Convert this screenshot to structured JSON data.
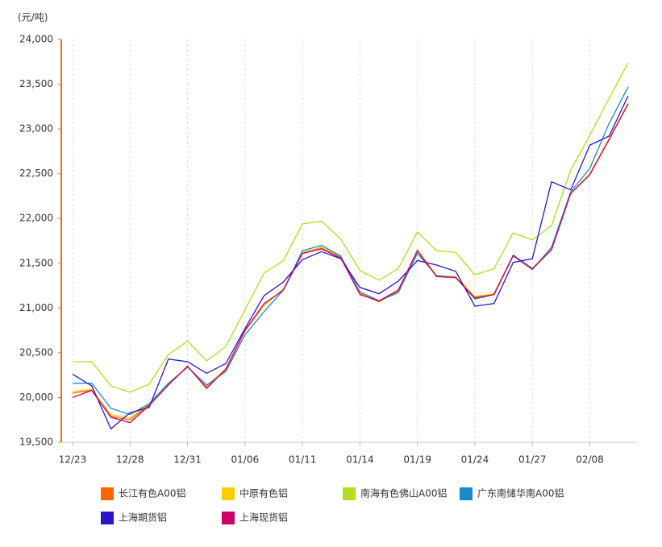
{
  "chart_data": {
    "type": "line",
    "y_unit": "(元/吨)",
    "categories": [
      "12/23",
      null,
      null,
      "12/28",
      null,
      null,
      "12/31",
      null,
      null,
      "01/06",
      null,
      null,
      "01/11",
      null,
      null,
      "01/14",
      null,
      null,
      "01/19",
      null,
      null,
      "01/24",
      null,
      null,
      "01/27",
      null,
      null,
      "02/08",
      null,
      null
    ],
    "ylim": [
      19500,
      24000
    ],
    "yticks": [
      {
        "value": 19500,
        "label": "19,500"
      },
      {
        "value": 20000,
        "label": "20,000"
      },
      {
        "value": 20500,
        "label": "20,500"
      },
      {
        "value": 21000,
        "label": "21,000"
      },
      {
        "value": 21500,
        "label": "21,500"
      },
      {
        "value": 22000,
        "label": "22,000"
      },
      {
        "value": 22500,
        "label": "22,500"
      },
      {
        "value": 23000,
        "label": "23,000"
      },
      {
        "value": 23500,
        "label": "23,500"
      },
      {
        "value": 24000,
        "label": "24,000"
      }
    ],
    "grid": true,
    "series": [
      {
        "name": "长江有色A00铝",
        "color": "#ff6600",
        "values": [
          20050,
          20080,
          19790,
          19750,
          19920,
          20140,
          20350,
          20120,
          20310,
          20740,
          21030,
          21210,
          21620,
          21670,
          21570,
          21160,
          21070,
          21190,
          21650,
          21360,
          21350,
          21120,
          21160,
          21590,
          21430,
          21660,
          22280,
          22500,
          22890,
          23290
        ]
      },
      {
        "name": "中原有色铝",
        "color": "#ffcc00",
        "values": [
          20070,
          20090,
          19810,
          19770,
          19930,
          20150,
          20350,
          20130,
          20320,
          20740,
          21030,
          21210,
          21620,
          21680,
          21570,
          21170,
          21080,
          21200,
          21650,
          21360,
          21350,
          21130,
          21160,
          21590,
          21430,
          21660,
          22280,
          22500,
          22890,
          23290
        ]
      },
      {
        "name": "南海有色佛山A00铝",
        "color": "#b3dd1e",
        "values": [
          20400,
          20400,
          20130,
          20060,
          20150,
          20480,
          20630,
          20410,
          20570,
          20980,
          21390,
          21530,
          21940,
          21970,
          21770,
          21420,
          21310,
          21440,
          21850,
          21640,
          21620,
          21370,
          21440,
          21840,
          21760,
          21920,
          22540,
          22930,
          23340,
          23740
        ]
      },
      {
        "name": "广东南储华南A00铝",
        "color": "#1a8ad0",
        "values": [
          20160,
          20160,
          19880,
          19810,
          19930,
          20160,
          20340,
          20140,
          20290,
          20700,
          20960,
          21200,
          21640,
          21700,
          21580,
          21180,
          21080,
          21170,
          21610,
          21360,
          21340,
          21100,
          21150,
          21580,
          21430,
          21680,
          22300,
          22560,
          23060,
          23470
        ]
      },
      {
        "name": "上海期货铝",
        "color": "#2b14cc",
        "values": [
          20260,
          20130,
          19650,
          19830,
          19890,
          20430,
          20400,
          20270,
          20380,
          20770,
          21140,
          21290,
          21540,
          21630,
          21550,
          21230,
          21160,
          21300,
          21530,
          21480,
          21410,
          21020,
          21050,
          21510,
          21550,
          22410,
          22320,
          22820,
          22920,
          23370
        ]
      },
      {
        "name": "上海现货铝",
        "color": "#cc0066",
        "values": [
          20000,
          20080,
          19780,
          19720,
          19910,
          20140,
          20350,
          20100,
          20320,
          20750,
          21050,
          21200,
          21610,
          21660,
          21560,
          21150,
          21080,
          21200,
          21640,
          21350,
          21340,
          21110,
          21150,
          21590,
          21440,
          21650,
          22280,
          22490,
          22880,
          23280
        ]
      }
    ]
  }
}
